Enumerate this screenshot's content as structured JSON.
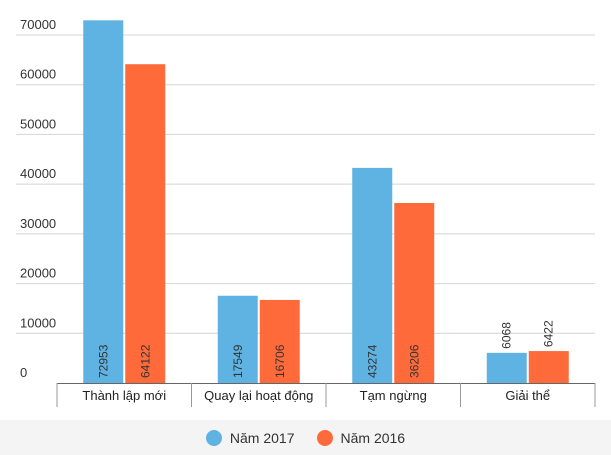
{
  "chart_data": {
    "type": "bar",
    "title": "",
    "xlabel": "",
    "ylabel": "",
    "categories": [
      "Thành lập mới",
      "Quay lại hoạt động",
      "Tạm ngừng",
      "Giải thể"
    ],
    "series": [
      {
        "name": "Năm 2017",
        "color": "#5fb3e3",
        "values": [
          72953,
          17549,
          43274,
          6068
        ]
      },
      {
        "name": "Năm 2016",
        "color": "#fe6a3a",
        "values": [
          64122,
          16706,
          36206,
          6422
        ]
      }
    ],
    "ylim": [
      0,
      70000
    ],
    "yticks": [
      0,
      10000,
      20000,
      30000,
      40000,
      50000,
      60000,
      70000
    ],
    "grid": true,
    "legend_position": "bottom"
  }
}
